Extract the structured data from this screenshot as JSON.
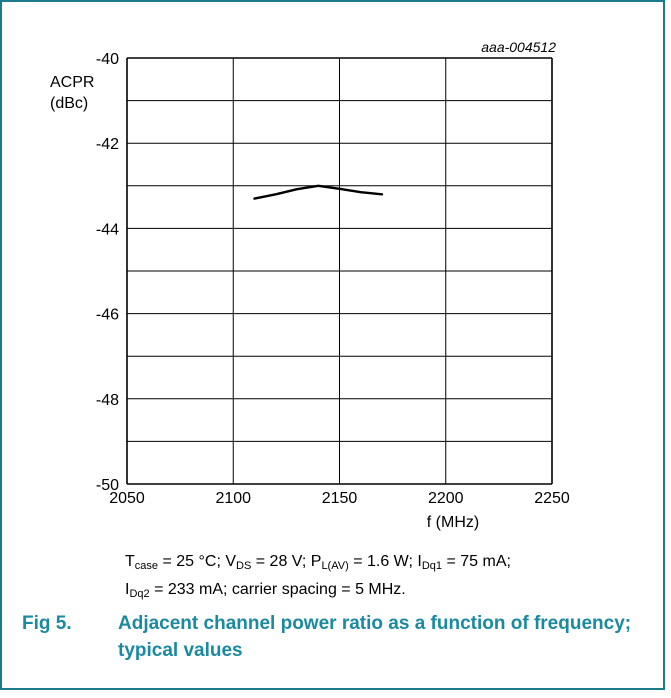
{
  "chart_data": {
    "type": "line",
    "reference": "aaa-004512",
    "ylabel_line1": "ACPR",
    "ylabel_line2": "(dBc)",
    "xlabel": "f (MHz)",
    "xlim": [
      2050,
      2250
    ],
    "ylim": [
      -50,
      -40
    ],
    "x_ticks": [
      2050,
      2100,
      2150,
      2200,
      2250
    ],
    "y_ticks": [
      -40,
      -42,
      -44,
      -46,
      -48,
      -50
    ],
    "grid": true,
    "series": [
      {
        "color": "#000000",
        "x": [
          2110,
          2120,
          2130,
          2140,
          2150,
          2160,
          2170
        ],
        "y": [
          -43.3,
          -43.2,
          -43.08,
          -43.0,
          -43.07,
          -43.15,
          -43.2
        ]
      }
    ]
  },
  "conditions": {
    "line1": "T<sub>case</sub> = 25 °C; V<sub>DS</sub> = 28 V; P<sub>L(AV)</sub> = 1.6 W; I<sub>Dq1</sub> = 75 mA;",
    "line2": "I<sub>Dq2</sub> = 233 mA; carrier spacing = 5 MHz."
  },
  "caption": {
    "number": "Fig 5.",
    "text": "Adjacent channel power ratio as a function of frequency; typical values"
  },
  "colors": {
    "border": "#1b7a8c",
    "caption": "#1b8aa0"
  }
}
